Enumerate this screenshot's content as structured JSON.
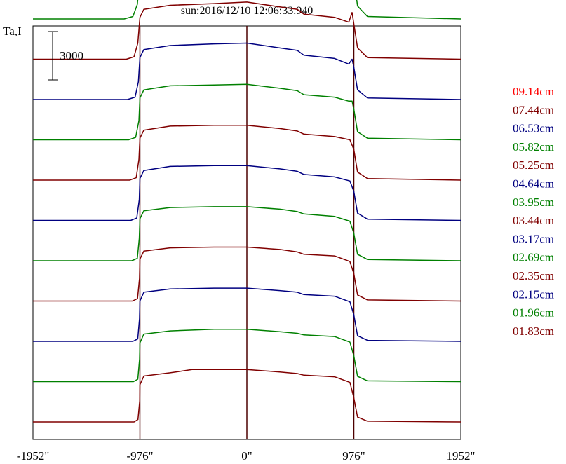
{
  "chart_data": {
    "type": "line",
    "title": "sun:2016/12/10 12:06:33.940",
    "ylabel": "Ta,I",
    "scale_bar_label": "3000",
    "scale_bar_value": 3000,
    "xlim": [
      -1952,
      1952
    ],
    "x_ticks": [
      -1952,
      -976,
      0,
      976,
      1952
    ],
    "x_tick_labels": [
      "-1952\"",
      "-976\"",
      "0\"",
      "976\"",
      "1952\""
    ],
    "vertical_lines_at": [
      -976,
      0,
      976
    ],
    "grid": false,
    "legend_placement": "right",
    "series": [
      {
        "name": "09.14cm",
        "color": "#ff0000",
        "offset": 26000,
        "points": [
          [
            -1952,
            0
          ],
          [
            -1200,
            0
          ],
          [
            -1100,
            300
          ],
          [
            -1040,
            1300
          ],
          [
            -1005,
            2700
          ],
          [
            -976,
            4300
          ],
          [
            -940,
            5000
          ],
          [
            -700,
            5300
          ],
          [
            -560,
            5750
          ],
          [
            -500,
            5700
          ],
          [
            -400,
            5650
          ],
          [
            -200,
            5700
          ],
          [
            -100,
            5850
          ],
          [
            0,
            5950
          ],
          [
            100,
            5800
          ],
          [
            300,
            5500
          ],
          [
            420,
            5400
          ],
          [
            460,
            5650
          ],
          [
            510,
            5050
          ],
          [
            700,
            4800
          ],
          [
            880,
            4600
          ],
          [
            930,
            4500
          ],
          [
            960,
            5950
          ],
          [
            976,
            5600
          ],
          [
            1000,
            4300
          ],
          [
            1060,
            1800
          ],
          [
            1150,
            500
          ],
          [
            1300,
            100
          ],
          [
            1952,
            0
          ]
        ]
      },
      {
        "name": "07.44cm",
        "color": "#800000",
        "offset": 23500,
        "points": [
          [
            -1952,
            0
          ],
          [
            -1150,
            0
          ],
          [
            -1080,
            150
          ],
          [
            -1030,
            600
          ],
          [
            -990,
            1900
          ],
          [
            -976,
            3300
          ],
          [
            -940,
            3900
          ],
          [
            -700,
            4200
          ],
          [
            -500,
            4350
          ],
          [
            -300,
            4200
          ],
          [
            0,
            4400
          ],
          [
            300,
            4000
          ],
          [
            460,
            4050
          ],
          [
            520,
            3600
          ],
          [
            800,
            3300
          ],
          [
            930,
            3000
          ],
          [
            960,
            4500
          ],
          [
            976,
            3700
          ],
          [
            1010,
            1300
          ],
          [
            1100,
            300
          ],
          [
            1200,
            50
          ],
          [
            1952,
            0
          ]
        ]
      },
      {
        "name": "06.53cm",
        "color": "#000080",
        "offset": 21000,
        "points": [
          [
            -1952,
            0
          ],
          [
            -1150,
            0
          ],
          [
            -1060,
            100
          ],
          [
            -1010,
            700
          ],
          [
            -985,
            1900
          ],
          [
            -976,
            2900
          ],
          [
            -940,
            3300
          ],
          [
            -700,
            3600
          ],
          [
            -300,
            3700
          ],
          [
            0,
            3800
          ],
          [
            300,
            3500
          ],
          [
            460,
            3400
          ],
          [
            520,
            3000
          ],
          [
            800,
            2800
          ],
          [
            920,
            2550
          ],
          [
            960,
            4000
          ],
          [
            976,
            3300
          ],
          [
            1010,
            1000
          ],
          [
            1100,
            200
          ],
          [
            1952,
            0
          ]
        ]
      },
      {
        "name": "05.82cm",
        "color": "#008000",
        "offset": 18500,
        "points": [
          [
            -1952,
            0
          ],
          [
            -1120,
            0
          ],
          [
            -1040,
            150
          ],
          [
            -1000,
            900
          ],
          [
            -976,
            2600
          ],
          [
            -940,
            3200
          ],
          [
            -700,
            3400
          ],
          [
            -300,
            3500
          ],
          [
            0,
            3650
          ],
          [
            300,
            3300
          ],
          [
            460,
            3200
          ],
          [
            520,
            2900
          ],
          [
            800,
            2700
          ],
          [
            930,
            2500
          ],
          [
            960,
            3200
          ],
          [
            976,
            2500
          ],
          [
            1010,
            800
          ],
          [
            1100,
            150
          ],
          [
            1952,
            0
          ]
        ]
      },
      {
        "name": "05.25cm",
        "color": "#800000",
        "offset": 16000,
        "points": [
          [
            -1952,
            0
          ],
          [
            -1100,
            0
          ],
          [
            -1030,
            150
          ],
          [
            -995,
            1000
          ],
          [
            -976,
            2600
          ],
          [
            -940,
            3100
          ],
          [
            -700,
            3350
          ],
          [
            -300,
            3450
          ],
          [
            0,
            3550
          ],
          [
            300,
            3250
          ],
          [
            460,
            3100
          ],
          [
            520,
            2800
          ],
          [
            800,
            2600
          ],
          [
            930,
            2300
          ],
          [
            960,
            2900
          ],
          [
            976,
            2200
          ],
          [
            1010,
            700
          ],
          [
            1100,
            100
          ],
          [
            1952,
            0
          ]
        ]
      },
      {
        "name": "04.64cm",
        "color": "#000080",
        "offset": 13500,
        "points": [
          [
            -1952,
            0
          ],
          [
            -1090,
            0
          ],
          [
            -1020,
            150
          ],
          [
            -990,
            1100
          ],
          [
            -976,
            2600
          ],
          [
            -940,
            3100
          ],
          [
            -700,
            3350
          ],
          [
            -300,
            3450
          ],
          [
            0,
            3500
          ],
          [
            300,
            3200
          ],
          [
            460,
            3050
          ],
          [
            520,
            2750
          ],
          [
            800,
            2550
          ],
          [
            930,
            2200
          ],
          [
            960,
            2500
          ],
          [
            976,
            2000
          ],
          [
            1010,
            600
          ],
          [
            1100,
            100
          ],
          [
            1952,
            0
          ]
        ]
      },
      {
        "name": "03.95cm",
        "color": "#008000",
        "offset": 11000,
        "points": [
          [
            -1952,
            0
          ],
          [
            -1080,
            0
          ],
          [
            -1015,
            150
          ],
          [
            -985,
            1200
          ],
          [
            -976,
            2600
          ],
          [
            -940,
            3100
          ],
          [
            -700,
            3350
          ],
          [
            -300,
            3400
          ],
          [
            0,
            3450
          ],
          [
            300,
            3200
          ],
          [
            460,
            3050
          ],
          [
            520,
            2800
          ],
          [
            800,
            2650
          ],
          [
            930,
            2400
          ],
          [
            960,
            2400
          ],
          [
            976,
            1900
          ],
          [
            1010,
            500
          ],
          [
            1100,
            100
          ],
          [
            1952,
            0
          ]
        ]
      },
      {
        "name": "03.44cm",
        "color": "#800000",
        "offset": 8500,
        "points": [
          [
            -1952,
            0
          ],
          [
            -1070,
            0
          ],
          [
            -1010,
            150
          ],
          [
            -985,
            1300
          ],
          [
            -976,
            2600
          ],
          [
            -940,
            3100
          ],
          [
            -700,
            3350
          ],
          [
            -300,
            3400
          ],
          [
            0,
            3400
          ],
          [
            300,
            3200
          ],
          [
            460,
            3050
          ],
          [
            520,
            2850
          ],
          [
            800,
            2700
          ],
          [
            940,
            2500
          ],
          [
            976,
            1900
          ],
          [
            1010,
            500
          ],
          [
            1100,
            100
          ],
          [
            1952,
            0
          ]
        ]
      },
      {
        "name": "03.17cm",
        "color": "#000080",
        "offset": 6000,
        "points": [
          [
            -1952,
            0
          ],
          [
            -1060,
            0
          ],
          [
            -1005,
            150
          ],
          [
            -982,
            1300
          ],
          [
            -976,
            2600
          ],
          [
            -940,
            3100
          ],
          [
            -700,
            3350
          ],
          [
            -300,
            3400
          ],
          [
            0,
            3400
          ],
          [
            300,
            3200
          ],
          [
            460,
            3050
          ],
          [
            520,
            2850
          ],
          [
            800,
            2700
          ],
          [
            940,
            2450
          ],
          [
            976,
            1800
          ],
          [
            1010,
            450
          ],
          [
            1100,
            80
          ],
          [
            1952,
            0
          ]
        ]
      },
      {
        "name": "02.69cm",
        "color": "#008000",
        "offset": 3500,
        "points": [
          [
            -1952,
            0
          ],
          [
            -1050,
            0
          ],
          [
            -1000,
            150
          ],
          [
            -982,
            1400
          ],
          [
            -976,
            2600
          ],
          [
            -940,
            3100
          ],
          [
            -700,
            3300
          ],
          [
            -300,
            3350
          ],
          [
            0,
            3350
          ],
          [
            300,
            3200
          ],
          [
            460,
            3050
          ],
          [
            520,
            2900
          ],
          [
            800,
            2750
          ],
          [
            940,
            2450
          ],
          [
            976,
            1700
          ],
          [
            1010,
            400
          ],
          [
            1100,
            80
          ],
          [
            1952,
            0
          ]
        ]
      },
      {
        "name": "02.35cm",
        "color": "#800000",
        "offset": 1000,
        "points": [
          [
            -1952,
            0
          ],
          [
            -1045,
            0
          ],
          [
            -998,
            150
          ],
          [
            -980,
            1400
          ],
          [
            -976,
            2600
          ],
          [
            -940,
            3100
          ],
          [
            -700,
            3300
          ],
          [
            -300,
            3350
          ],
          [
            0,
            3350
          ],
          [
            300,
            3200
          ],
          [
            460,
            3050
          ],
          [
            520,
            2900
          ],
          [
            800,
            2800
          ],
          [
            940,
            2450
          ],
          [
            976,
            1700
          ],
          [
            1010,
            380
          ],
          [
            1100,
            70
          ],
          [
            1952,
            0
          ]
        ]
      },
      {
        "name": "02.15cm",
        "color": "#000080",
        "offset": -1500,
        "points": [
          [
            -1952,
            0
          ],
          [
            -1040,
            0
          ],
          [
            -996,
            150
          ],
          [
            -980,
            1400
          ],
          [
            -976,
            2500
          ],
          [
            -940,
            3050
          ],
          [
            -700,
            3250
          ],
          [
            -300,
            3300
          ],
          [
            0,
            3300
          ],
          [
            300,
            3150
          ],
          [
            460,
            3050
          ],
          [
            520,
            2900
          ],
          [
            800,
            2800
          ],
          [
            940,
            2450
          ],
          [
            976,
            1650
          ],
          [
            1010,
            350
          ],
          [
            1100,
            60
          ],
          [
            1952,
            0
          ]
        ]
      },
      {
        "name": "01.96cm",
        "color": "#008000",
        "offset": -4000,
        "points": [
          [
            -1952,
            0
          ],
          [
            -1035,
            0
          ],
          [
            -995,
            150
          ],
          [
            -979,
            1400
          ],
          [
            -976,
            2400
          ],
          [
            -940,
            2950
          ],
          [
            -700,
            3150
          ],
          [
            -300,
            3250
          ],
          [
            0,
            3250
          ],
          [
            300,
            3100
          ],
          [
            460,
            3000
          ],
          [
            520,
            2900
          ],
          [
            800,
            2800
          ],
          [
            940,
            2450
          ],
          [
            976,
            1600
          ],
          [
            1010,
            330
          ],
          [
            1100,
            50
          ],
          [
            1952,
            0
          ]
        ]
      },
      {
        "name": "01.83cm",
        "color": "#800000",
        "offset": -6500,
        "points": [
          [
            -1952,
            0
          ],
          [
            -1030,
            0
          ],
          [
            -994,
            150
          ],
          [
            -978,
            1300
          ],
          [
            -976,
            2300
          ],
          [
            -940,
            2850
          ],
          [
            -700,
            3050
          ],
          [
            -500,
            3250
          ],
          [
            -300,
            3250
          ],
          [
            0,
            3250
          ],
          [
            300,
            3100
          ],
          [
            460,
            3000
          ],
          [
            520,
            2900
          ],
          [
            800,
            2800
          ],
          [
            940,
            2450
          ],
          [
            976,
            1500
          ],
          [
            1010,
            300
          ],
          [
            1100,
            50
          ],
          [
            1952,
            0
          ]
        ]
      }
    ]
  }
}
